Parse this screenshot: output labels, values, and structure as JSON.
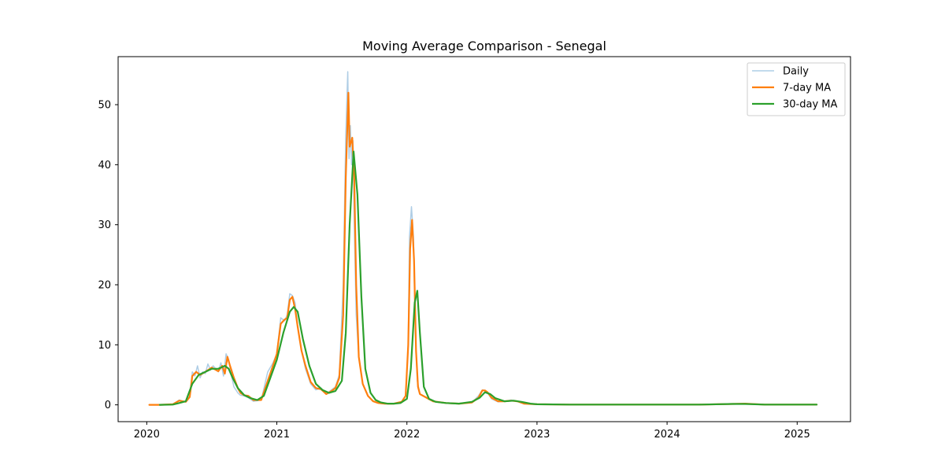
{
  "chart_data": {
    "type": "line",
    "title": "Moving Average Comparison - Senegal",
    "xlabel": "",
    "ylabel": "",
    "xlim": [
      2019.78,
      2025.41
    ],
    "ylim": [
      -2.8,
      58.0
    ],
    "x_ticks": [
      2020,
      2021,
      2022,
      2023,
      2024,
      2025
    ],
    "x_tick_labels": [
      "2020",
      "2021",
      "2022",
      "2023",
      "2024",
      "2025"
    ],
    "y_ticks": [
      0,
      10,
      20,
      30,
      40,
      50
    ],
    "y_tick_labels": [
      "0",
      "10",
      "20",
      "30",
      "40",
      "50"
    ],
    "grid": false,
    "legend": {
      "position": "top-right"
    },
    "series": [
      {
        "name": "Daily",
        "color": "#aecde5",
        "x": [
          2020.02,
          2020.1,
          2020.2,
          2020.25,
          2020.3,
          2020.33,
          2020.35,
          2020.37,
          2020.39,
          2020.41,
          2020.43,
          2020.45,
          2020.47,
          2020.49,
          2020.51,
          2020.53,
          2020.55,
          2020.57,
          2020.59,
          2020.61,
          2020.63,
          2020.65,
          2020.67,
          2020.7,
          2020.72,
          2020.75,
          2020.78,
          2020.82,
          2020.88,
          2020.93,
          2020.97,
          2021.0,
          2021.03,
          2021.06,
          2021.08,
          2021.1,
          2021.12,
          2021.14,
          2021.16,
          2021.19,
          2021.22,
          2021.26,
          2021.3,
          2021.34,
          2021.38,
          2021.42,
          2021.45,
          2021.48,
          2021.51,
          2021.53,
          2021.545,
          2021.555,
          2021.565,
          2021.575,
          2021.585,
          2021.595,
          2021.61,
          2021.63,
          2021.66,
          2021.7,
          2021.74,
          2021.78,
          2021.83,
          2021.9,
          2021.96,
          2021.99,
          2022.01,
          2022.02,
          2022.035,
          2022.05,
          2022.065,
          2022.08,
          2022.1,
          2022.15,
          2022.2,
          2022.3,
          2022.4,
          2022.5,
          2022.55,
          2022.58,
          2022.6,
          2022.62,
          2022.65,
          2022.7,
          2022.75,
          2022.8,
          2022.85,
          2022.9,
          2023.0,
          2023.25,
          2023.5,
          2023.75,
          2024.0,
          2024.25,
          2024.5,
          2024.6,
          2024.75,
          2025.0,
          2025.15
        ],
        "values": [
          0,
          0,
          0.1,
          0.8,
          0.5,
          1.5,
          5.5,
          4.8,
          6.5,
          4.5,
          5.5,
          5.2,
          6.8,
          5.8,
          6.5,
          6.0,
          5.5,
          7.0,
          4.8,
          8.5,
          7.5,
          5.0,
          3.0,
          2.0,
          1.6,
          1.5,
          1.2,
          0.6,
          0.8,
          5.5,
          7.0,
          8.5,
          14.5,
          14.0,
          15.0,
          18.5,
          18.2,
          17.0,
          13.0,
          9.0,
          6.0,
          3.5,
          2.5,
          2.8,
          1.8,
          2.5,
          3.0,
          5.0,
          20.0,
          45.0,
          55.5,
          41.0,
          46.5,
          40.0,
          44.0,
          30.0,
          15.0,
          8.0,
          3.5,
          1.5,
          0.6,
          0.3,
          0.2,
          0.2,
          0.5,
          1.5,
          10.0,
          28.0,
          33.0,
          28.0,
          12.0,
          4.0,
          1.8,
          1.2,
          0.6,
          0.3,
          0.2,
          0.4,
          1.5,
          2.5,
          2.4,
          2.0,
          1.0,
          0.5,
          0.6,
          0.8,
          0.6,
          0.2,
          0.1,
          0.05,
          0.05,
          0.05,
          0.05,
          0.05,
          0.15,
          0.2,
          0.05,
          0.05,
          0.05
        ]
      },
      {
        "name": "7-day MA",
        "color": "#ff7f0e",
        "x": [
          2020.02,
          2020.1,
          2020.2,
          2020.25,
          2020.3,
          2020.33,
          2020.35,
          2020.38,
          2020.41,
          2020.45,
          2020.5,
          2020.55,
          2020.58,
          2020.6,
          2020.62,
          2020.64,
          2020.67,
          2020.7,
          2020.72,
          2020.75,
          2020.78,
          2020.82,
          2020.88,
          2020.93,
          2020.97,
          2021.0,
          2021.03,
          2021.06,
          2021.08,
          2021.1,
          2021.12,
          2021.14,
          2021.16,
          2021.19,
          2021.22,
          2021.26,
          2021.3,
          2021.34,
          2021.38,
          2021.42,
          2021.45,
          2021.48,
          2021.51,
          2021.53,
          2021.55,
          2021.56,
          2021.58,
          2021.595,
          2021.61,
          2021.63,
          2021.66,
          2021.7,
          2021.74,
          2021.78,
          2021.83,
          2021.9,
          2021.96,
          2021.99,
          2022.01,
          2022.025,
          2022.04,
          2022.055,
          2022.07,
          2022.085,
          2022.1,
          2022.15,
          2022.2,
          2022.3,
          2022.4,
          2022.5,
          2022.55,
          2022.58,
          2022.6,
          2022.62,
          2022.65,
          2022.7,
          2022.75,
          2022.8,
          2022.85,
          2022.9,
          2023.0,
          2023.25,
          2023.5,
          2023.75,
          2024.0,
          2024.25,
          2024.5,
          2024.6,
          2024.75,
          2025.0,
          2025.15
        ],
        "values": [
          0,
          0,
          0.1,
          0.7,
          0.5,
          1.3,
          4.8,
          5.5,
          5.0,
          5.5,
          6.2,
          5.6,
          6.5,
          5.2,
          8.0,
          6.5,
          4.5,
          2.8,
          2.0,
          1.6,
          1.5,
          0.8,
          0.8,
          4.0,
          6.5,
          8.5,
          13.5,
          14.2,
          14.5,
          17.5,
          18.0,
          16.0,
          13.0,
          9.0,
          6.5,
          3.8,
          2.8,
          2.6,
          1.8,
          2.3,
          2.8,
          4.5,
          15.0,
          38.0,
          52.0,
          43.0,
          44.5,
          38.0,
          20.0,
          8.0,
          3.5,
          1.5,
          0.6,
          0.3,
          0.2,
          0.2,
          0.5,
          1.5,
          10.0,
          26.0,
          30.8,
          24.0,
          9.0,
          3.0,
          1.8,
          1.2,
          0.6,
          0.3,
          0.2,
          0.4,
          1.2,
          2.4,
          2.4,
          2.1,
          1.2,
          0.6,
          0.6,
          0.7,
          0.6,
          0.2,
          0.1,
          0.05,
          0.05,
          0.05,
          0.05,
          0.05,
          0.15,
          0.2,
          0.05,
          0.05,
          0.05
        ]
      },
      {
        "name": "30-day MA",
        "color": "#2ca02c",
        "x": [
          2020.1,
          2020.2,
          2020.25,
          2020.3,
          2020.35,
          2020.4,
          2020.45,
          2020.5,
          2020.55,
          2020.6,
          2020.63,
          2020.66,
          2020.7,
          2020.75,
          2020.8,
          2020.85,
          2020.9,
          2020.95,
          2021.0,
          2021.05,
          2021.1,
          2021.13,
          2021.16,
          2021.2,
          2021.25,
          2021.3,
          2021.35,
          2021.4,
          2021.45,
          2021.5,
          2021.53,
          2021.56,
          2021.59,
          2021.62,
          2021.65,
          2021.68,
          2021.72,
          2021.76,
          2021.8,
          2021.85,
          2021.9,
          2021.95,
          2022.0,
          2022.03,
          2022.06,
          2022.08,
          2022.1,
          2022.13,
          2022.17,
          2022.22,
          2022.3,
          2022.4,
          2022.5,
          2022.56,
          2022.6,
          2022.64,
          2022.68,
          2022.75,
          2022.82,
          2022.88,
          2022.95,
          2023.0,
          2023.25,
          2023.5,
          2023.75,
          2024.0,
          2024.25,
          2024.5,
          2024.6,
          2024.75,
          2025.0,
          2025.15
        ],
        "values": [
          0,
          0.05,
          0.3,
          0.6,
          3.5,
          5.0,
          5.5,
          6.0,
          6.0,
          6.5,
          6.0,
          4.5,
          2.8,
          1.6,
          1.1,
          0.8,
          1.5,
          4.5,
          7.5,
          12.0,
          15.5,
          16.3,
          15.5,
          11.0,
          6.5,
          3.5,
          2.5,
          2.0,
          2.3,
          4.0,
          12.0,
          30.0,
          42.2,
          35.0,
          18.0,
          6.0,
          2.0,
          0.8,
          0.4,
          0.2,
          0.2,
          0.3,
          1.0,
          6.0,
          17.0,
          19.0,
          12.0,
          3.0,
          1.0,
          0.5,
          0.3,
          0.2,
          0.5,
          1.2,
          2.1,
          1.8,
          1.1,
          0.6,
          0.7,
          0.5,
          0.2,
          0.1,
          0.05,
          0.05,
          0.05,
          0.05,
          0.05,
          0.15,
          0.15,
          0.05,
          0.05,
          0.05
        ]
      }
    ]
  }
}
